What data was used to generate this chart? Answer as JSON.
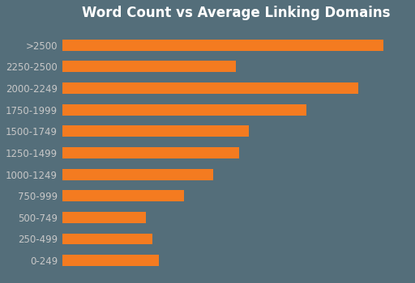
{
  "title": "Word Count vs Average Linking Domains",
  "categories": [
    ">2500",
    "2250-2500",
    "2000-2249",
    "1750-1999",
    "1500-1749",
    "1250-1499",
    "1000-1249",
    "750-999",
    "500-749",
    "250-499",
    "0-249"
  ],
  "values": [
    100,
    54,
    92,
    76,
    58,
    55,
    47,
    38,
    26,
    28,
    30
  ],
  "bar_color": "#F47B20",
  "background_color": "#546E7A",
  "title_color": "#FFFFFF",
  "label_color": "#C8C8C8",
  "title_fontsize": 12,
  "label_fontsize": 8.5,
  "bar_height": 0.52,
  "xlim": [
    0,
    108
  ]
}
